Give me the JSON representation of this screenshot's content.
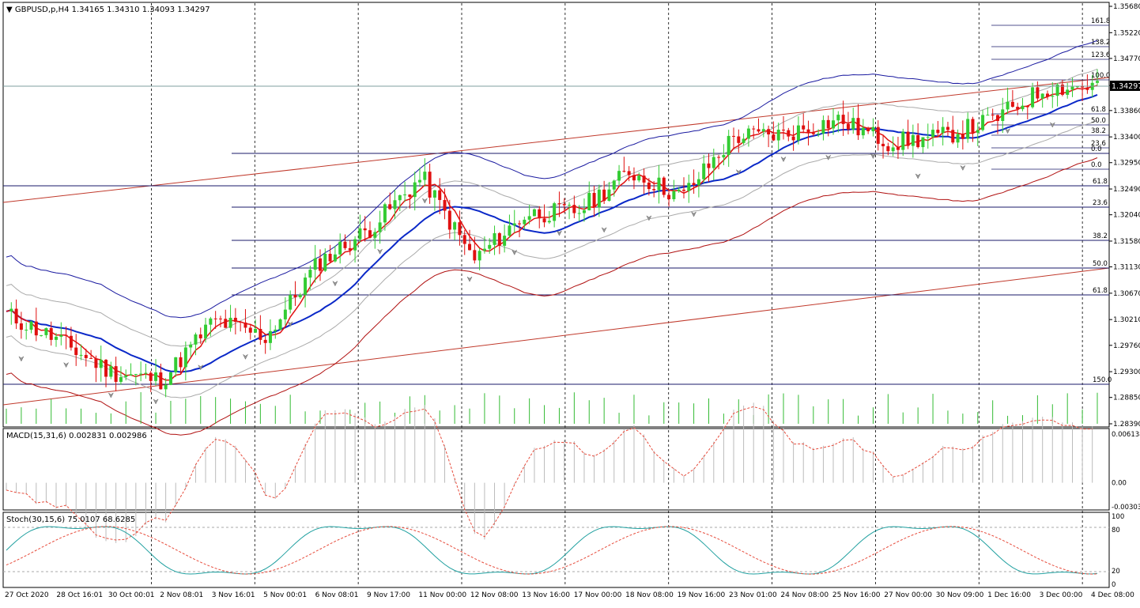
{
  "main": {
    "symbol_label": "▼ GBPUSD,p,H4  1.34165 1.34310 1.34093 1.34297",
    "current_price_label": "1.34297",
    "price_ticks": [
      "1.35680",
      "1.35220",
      "1.34770",
      "1.34297",
      "1.33860",
      "1.33400",
      "1.32950",
      "1.32490",
      "1.32040",
      "1.31580",
      "1.31130",
      "1.30670",
      "1.30210",
      "1.29760",
      "1.29300",
      "1.28850",
      "1.28390"
    ],
    "fib_right_labels": [
      "161.8",
      "138.2",
      "123.6",
      "100.0",
      "61.8",
      "50.0",
      "38.2",
      "23.6",
      "0.0",
      "0.0"
    ],
    "fib_left_labels": [
      "61.8",
      "23.6",
      "38.2",
      "50.0",
      "61.8",
      "150.0"
    ]
  },
  "macd": {
    "label": "MACD(15,31,6) 0.002831 0.002986",
    "ticks": [
      "0.006138",
      "0.00",
      "-0.00303"
    ]
  },
  "stoch": {
    "label": "Stoch(30,15,6) 75.0107 68.6285",
    "ticks": [
      "100",
      "80",
      "20",
      "0"
    ]
  },
  "time_labels": [
    "27 Oct 2020",
    "28 Oct 16:01",
    "30 Oct 00:01",
    "2 Nov 08:01",
    "3 Nov 16:01",
    "5 Nov 00:01",
    "6 Nov 08:01",
    "9 Nov 17:00",
    "11 Nov 00:00",
    "12 Nov 08:00",
    "13 Nov 16:00",
    "17 Nov 00:00",
    "18 Nov 08:00",
    "19 Nov 16:00",
    "23 Nov 01:00",
    "24 Nov 08:00",
    "25 Nov 16:00",
    "27 Nov 00:00",
    "30 Nov 09:00",
    "1 Dec 16:00",
    "3 Dec 00:00",
    "4 Dec 08:00"
  ],
  "chart_data": {
    "type": "line",
    "title": "GBPUSD,p,H4",
    "ohlc_last": {
      "open": 1.34165,
      "high": 1.3431,
      "low": 1.34093,
      "close": 1.34297
    },
    "ylim": [
      1.2839,
      1.3568
    ],
    "x": [
      "27 Oct 2020",
      "28 Oct 16:01",
      "30 Oct 00:01",
      "2 Nov 08:01",
      "3 Nov 16:01",
      "5 Nov 00:01",
      "6 Nov 08:01",
      "9 Nov 17:00",
      "11 Nov 00:00",
      "12 Nov 08:00",
      "13 Nov 16:00",
      "17 Nov 00:00",
      "18 Nov 08:00",
      "19 Nov 16:00",
      "23 Nov 01:00",
      "24 Nov 08:00",
      "25 Nov 16:00",
      "27 Nov 00:00",
      "30 Nov 09:00",
      "1 Dec 16:00",
      "3 Dec 00:00",
      "4 Dec 08:00"
    ],
    "close": [
      1.303,
      1.2985,
      1.293,
      1.2915,
      1.302,
      1.299,
      1.312,
      1.318,
      1.327,
      1.3125,
      1.3205,
      1.321,
      1.328,
      1.3235,
      1.334,
      1.3345,
      1.337,
      1.333,
      1.334,
      1.337,
      1.3425,
      1.343
    ],
    "macd": {
      "value": 0.002831,
      "signal": 0.002986,
      "ylim": [
        -0.00303,
        0.006138
      ]
    },
    "stoch": {
      "k": 75.0107,
      "d": 68.6285,
      "ylim": [
        0,
        100
      ],
      "levels": [
        20,
        80
      ]
    },
    "grid": true
  }
}
